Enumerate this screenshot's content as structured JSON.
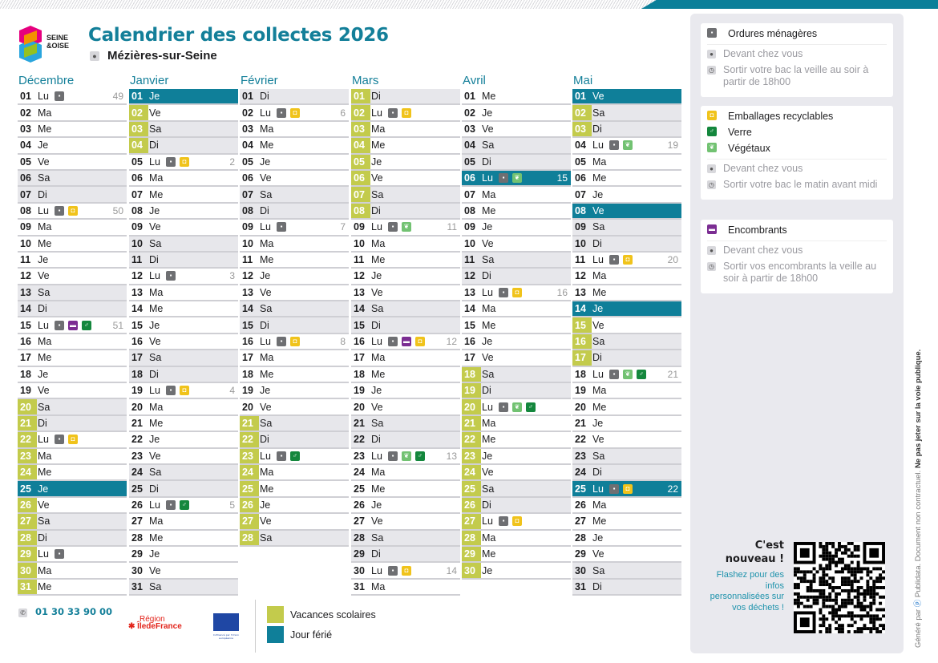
{
  "header": {
    "title": "Calendrier des collectes 2026",
    "town": "Mézières-sur-Seine",
    "logo_text": "SEINE & OISE"
  },
  "colors": {
    "teal": "#0f7f99",
    "vacances": "#c3cb4c",
    "weekend": "#e7e7eb"
  },
  "months": [
    {
      "name": "Décembre",
      "days": [
        {
          "n": "01",
          "j": "Lu",
          "i": [
            "om"
          ],
          "w": "49"
        },
        {
          "n": "02",
          "j": "Ma"
        },
        {
          "n": "03",
          "j": "Me"
        },
        {
          "n": "04",
          "j": "Je"
        },
        {
          "n": "05",
          "j": "Ve"
        },
        {
          "n": "06",
          "j": "Sa"
        },
        {
          "n": "07",
          "j": "Di"
        },
        {
          "n": "08",
          "j": "Lu",
          "i": [
            "om",
            "emb"
          ],
          "w": "50"
        },
        {
          "n": "09",
          "j": "Ma"
        },
        {
          "n": "10",
          "j": "Me"
        },
        {
          "n": "11",
          "j": "Je"
        },
        {
          "n": "12",
          "j": "Ve"
        },
        {
          "n": "13",
          "j": "Sa"
        },
        {
          "n": "14",
          "j": "Di"
        },
        {
          "n": "15",
          "j": "Lu",
          "i": [
            "om",
            "enc",
            "verre"
          ],
          "w": "51"
        },
        {
          "n": "16",
          "j": "Ma"
        },
        {
          "n": "17",
          "j": "Me"
        },
        {
          "n": "18",
          "j": "Je"
        },
        {
          "n": "19",
          "j": "Ve"
        },
        {
          "n": "20",
          "j": "Sa",
          "t": "vac"
        },
        {
          "n": "21",
          "j": "Di",
          "t": "vac"
        },
        {
          "n": "22",
          "j": "Lu",
          "i": [
            "om",
            "emb"
          ],
          "t": "vac"
        },
        {
          "n": "23",
          "j": "Ma",
          "t": "vac"
        },
        {
          "n": "24",
          "j": "Me",
          "t": "vac"
        },
        {
          "n": "25",
          "j": "Je",
          "t": "hol"
        },
        {
          "n": "26",
          "j": "Ve",
          "t": "vac"
        },
        {
          "n": "27",
          "j": "Sa",
          "t": "vac"
        },
        {
          "n": "28",
          "j": "Di",
          "t": "vac"
        },
        {
          "n": "29",
          "j": "Lu",
          "i": [
            "om"
          ],
          "t": "vac"
        },
        {
          "n": "30",
          "j": "Ma",
          "t": "vac"
        },
        {
          "n": "31",
          "j": "Me",
          "t": "vac"
        }
      ]
    },
    {
      "name": "Janvier",
      "days": [
        {
          "n": "01",
          "j": "Je",
          "t": "hol"
        },
        {
          "n": "02",
          "j": "Ve",
          "t": "vac"
        },
        {
          "n": "03",
          "j": "Sa",
          "t": "vac"
        },
        {
          "n": "04",
          "j": "Di",
          "t": "vac"
        },
        {
          "n": "05",
          "j": "Lu",
          "i": [
            "om",
            "emb"
          ],
          "w": "2"
        },
        {
          "n": "06",
          "j": "Ma"
        },
        {
          "n": "07",
          "j": "Me"
        },
        {
          "n": "08",
          "j": "Je"
        },
        {
          "n": "09",
          "j": "Ve"
        },
        {
          "n": "10",
          "j": "Sa"
        },
        {
          "n": "11",
          "j": "Di"
        },
        {
          "n": "12",
          "j": "Lu",
          "i": [
            "om"
          ],
          "w": "3"
        },
        {
          "n": "13",
          "j": "Ma"
        },
        {
          "n": "14",
          "j": "Me"
        },
        {
          "n": "15",
          "j": "Je"
        },
        {
          "n": "16",
          "j": "Ve"
        },
        {
          "n": "17",
          "j": "Sa"
        },
        {
          "n": "18",
          "j": "Di"
        },
        {
          "n": "19",
          "j": "Lu",
          "i": [
            "om",
            "emb"
          ],
          "w": "4"
        },
        {
          "n": "20",
          "j": "Ma"
        },
        {
          "n": "21",
          "j": "Me"
        },
        {
          "n": "22",
          "j": "Je"
        },
        {
          "n": "23",
          "j": "Ve"
        },
        {
          "n": "24",
          "j": "Sa"
        },
        {
          "n": "25",
          "j": "Di"
        },
        {
          "n": "26",
          "j": "Lu",
          "i": [
            "om",
            "verre"
          ],
          "w": "5"
        },
        {
          "n": "27",
          "j": "Ma"
        },
        {
          "n": "28",
          "j": "Me"
        },
        {
          "n": "29",
          "j": "Je"
        },
        {
          "n": "30",
          "j": "Ve"
        },
        {
          "n": "31",
          "j": "Sa"
        }
      ]
    },
    {
      "name": "Février",
      "days": [
        {
          "n": "01",
          "j": "Di"
        },
        {
          "n": "02",
          "j": "Lu",
          "i": [
            "om",
            "emb"
          ],
          "w": "6"
        },
        {
          "n": "03",
          "j": "Ma"
        },
        {
          "n": "04",
          "j": "Me"
        },
        {
          "n": "05",
          "j": "Je"
        },
        {
          "n": "06",
          "j": "Ve"
        },
        {
          "n": "07",
          "j": "Sa"
        },
        {
          "n": "08",
          "j": "Di"
        },
        {
          "n": "09",
          "j": "Lu",
          "i": [
            "om"
          ],
          "w": "7"
        },
        {
          "n": "10",
          "j": "Ma"
        },
        {
          "n": "11",
          "j": "Me"
        },
        {
          "n": "12",
          "j": "Je"
        },
        {
          "n": "13",
          "j": "Ve"
        },
        {
          "n": "14",
          "j": "Sa"
        },
        {
          "n": "15",
          "j": "Di"
        },
        {
          "n": "16",
          "j": "Lu",
          "i": [
            "om",
            "emb"
          ],
          "w": "8"
        },
        {
          "n": "17",
          "j": "Ma"
        },
        {
          "n": "18",
          "j": "Me"
        },
        {
          "n": "19",
          "j": "Je"
        },
        {
          "n": "20",
          "j": "Ve"
        },
        {
          "n": "21",
          "j": "Sa",
          "t": "vac"
        },
        {
          "n": "22",
          "j": "Di",
          "t": "vac"
        },
        {
          "n": "23",
          "j": "Lu",
          "i": [
            "om",
            "verre"
          ],
          "t": "vac"
        },
        {
          "n": "24",
          "j": "Ma",
          "t": "vac"
        },
        {
          "n": "25",
          "j": "Me",
          "t": "vac"
        },
        {
          "n": "26",
          "j": "Je",
          "t": "vac"
        },
        {
          "n": "27",
          "j": "Ve",
          "t": "vac"
        },
        {
          "n": "28",
          "j": "Sa",
          "t": "vac"
        }
      ]
    },
    {
      "name": "Mars",
      "days": [
        {
          "n": "01",
          "j": "Di",
          "t": "vac"
        },
        {
          "n": "02",
          "j": "Lu",
          "i": [
            "om",
            "emb"
          ],
          "t": "vac"
        },
        {
          "n": "03",
          "j": "Ma",
          "t": "vac"
        },
        {
          "n": "04",
          "j": "Me",
          "t": "vac"
        },
        {
          "n": "05",
          "j": "Je",
          "t": "vac"
        },
        {
          "n": "06",
          "j": "Ve",
          "t": "vac"
        },
        {
          "n": "07",
          "j": "Sa",
          "t": "vac"
        },
        {
          "n": "08",
          "j": "Di",
          "t": "vac"
        },
        {
          "n": "09",
          "j": "Lu",
          "i": [
            "om",
            "veg"
          ],
          "w": "11"
        },
        {
          "n": "10",
          "j": "Ma"
        },
        {
          "n": "11",
          "j": "Me"
        },
        {
          "n": "12",
          "j": "Je"
        },
        {
          "n": "13",
          "j": "Ve"
        },
        {
          "n": "14",
          "j": "Sa"
        },
        {
          "n": "15",
          "j": "Di"
        },
        {
          "n": "16",
          "j": "Lu",
          "i": [
            "om",
            "enc",
            "emb"
          ],
          "w": "12"
        },
        {
          "n": "17",
          "j": "Ma"
        },
        {
          "n": "18",
          "j": "Me"
        },
        {
          "n": "19",
          "j": "Je"
        },
        {
          "n": "20",
          "j": "Ve"
        },
        {
          "n": "21",
          "j": "Sa"
        },
        {
          "n": "22",
          "j": "Di"
        },
        {
          "n": "23",
          "j": "Lu",
          "i": [
            "om",
            "veg",
            "verre"
          ],
          "w": "13"
        },
        {
          "n": "24",
          "j": "Ma"
        },
        {
          "n": "25",
          "j": "Me"
        },
        {
          "n": "26",
          "j": "Je"
        },
        {
          "n": "27",
          "j": "Ve"
        },
        {
          "n": "28",
          "j": "Sa"
        },
        {
          "n": "29",
          "j": "Di"
        },
        {
          "n": "30",
          "j": "Lu",
          "i": [
            "om",
            "emb"
          ],
          "w": "14"
        },
        {
          "n": "31",
          "j": "Ma"
        }
      ]
    },
    {
      "name": "Avril",
      "days": [
        {
          "n": "01",
          "j": "Me"
        },
        {
          "n": "02",
          "j": "Je"
        },
        {
          "n": "03",
          "j": "Ve"
        },
        {
          "n": "04",
          "j": "Sa"
        },
        {
          "n": "05",
          "j": "Di"
        },
        {
          "n": "06",
          "j": "Lu",
          "i": [
            "om",
            "veg"
          ],
          "w": "15",
          "t": "hol"
        },
        {
          "n": "07",
          "j": "Ma"
        },
        {
          "n": "08",
          "j": "Me"
        },
        {
          "n": "09",
          "j": "Je"
        },
        {
          "n": "10",
          "j": "Ve"
        },
        {
          "n": "11",
          "j": "Sa"
        },
        {
          "n": "12",
          "j": "Di"
        },
        {
          "n": "13",
          "j": "Lu",
          "i": [
            "om",
            "emb"
          ],
          "w": "16"
        },
        {
          "n": "14",
          "j": "Ma"
        },
        {
          "n": "15",
          "j": "Me"
        },
        {
          "n": "16",
          "j": "Je"
        },
        {
          "n": "17",
          "j": "Ve"
        },
        {
          "n": "18",
          "j": "Sa",
          "t": "vac"
        },
        {
          "n": "19",
          "j": "Di",
          "t": "vac"
        },
        {
          "n": "20",
          "j": "Lu",
          "i": [
            "om",
            "veg",
            "verre"
          ],
          "t": "vac"
        },
        {
          "n": "21",
          "j": "Ma",
          "t": "vac"
        },
        {
          "n": "22",
          "j": "Me",
          "t": "vac"
        },
        {
          "n": "23",
          "j": "Je",
          "t": "vac"
        },
        {
          "n": "24",
          "j": "Ve",
          "t": "vac"
        },
        {
          "n": "25",
          "j": "Sa",
          "t": "vac"
        },
        {
          "n": "26",
          "j": "Di",
          "t": "vac"
        },
        {
          "n": "27",
          "j": "Lu",
          "i": [
            "om",
            "emb"
          ],
          "t": "vac"
        },
        {
          "n": "28",
          "j": "Ma",
          "t": "vac"
        },
        {
          "n": "29",
          "j": "Me",
          "t": "vac"
        },
        {
          "n": "30",
          "j": "Je",
          "t": "vac"
        }
      ]
    },
    {
      "name": "Mai",
      "days": [
        {
          "n": "01",
          "j": "Ve",
          "t": "hol"
        },
        {
          "n": "02",
          "j": "Sa",
          "t": "vac"
        },
        {
          "n": "03",
          "j": "Di",
          "t": "vac"
        },
        {
          "n": "04",
          "j": "Lu",
          "i": [
            "om",
            "veg"
          ],
          "w": "19"
        },
        {
          "n": "05",
          "j": "Ma"
        },
        {
          "n": "06",
          "j": "Me"
        },
        {
          "n": "07",
          "j": "Je"
        },
        {
          "n": "08",
          "j": "Ve",
          "t": "hol"
        },
        {
          "n": "09",
          "j": "Sa"
        },
        {
          "n": "10",
          "j": "Di"
        },
        {
          "n": "11",
          "j": "Lu",
          "i": [
            "om",
            "emb"
          ],
          "w": "20"
        },
        {
          "n": "12",
          "j": "Ma"
        },
        {
          "n": "13",
          "j": "Me"
        },
        {
          "n": "14",
          "j": "Je",
          "t": "hol"
        },
        {
          "n": "15",
          "j": "Ve",
          "t": "vac"
        },
        {
          "n": "16",
          "j": "Sa",
          "t": "vac"
        },
        {
          "n": "17",
          "j": "Di",
          "t": "vac"
        },
        {
          "n": "18",
          "j": "Lu",
          "i": [
            "om",
            "veg",
            "verre"
          ],
          "w": "21"
        },
        {
          "n": "19",
          "j": "Ma"
        },
        {
          "n": "20",
          "j": "Me"
        },
        {
          "n": "21",
          "j": "Je"
        },
        {
          "n": "22",
          "j": "Ve"
        },
        {
          "n": "23",
          "j": "Sa"
        },
        {
          "n": "24",
          "j": "Di"
        },
        {
          "n": "25",
          "j": "Lu",
          "i": [
            "om",
            "emb"
          ],
          "w": "22",
          "t": "hol"
        },
        {
          "n": "26",
          "j": "Ma"
        },
        {
          "n": "27",
          "j": "Me"
        },
        {
          "n": "28",
          "j": "Je"
        },
        {
          "n": "29",
          "j": "Ve"
        },
        {
          "n": "30",
          "j": "Sa"
        },
        {
          "n": "31",
          "j": "Di"
        }
      ]
    }
  ],
  "icons": {
    "om": "trash-icon",
    "emb": "packaging-icon",
    "verre": "glass-bottle-icon",
    "veg": "leaf-icon",
    "enc": "bulky-item-icon"
  },
  "legend": {
    "om": {
      "title": "Ordures ménagères",
      "where": "Devant chez vous",
      "when": "Sortir votre bac la veille au soir à partir de 18h00"
    },
    "tri": {
      "emb": "Emballages recyclables",
      "verre": "Verre",
      "veg": "Végétaux",
      "where": "Devant chez vous",
      "when": "Sortir votre bac le matin avant midi"
    },
    "enc": {
      "title": "Encombrants",
      "where": "Devant chez vous",
      "when": "Sortir vos encombrants la veille au soir à partir de 18h00"
    }
  },
  "promo": {
    "title1": "C'est",
    "title2": "nouveau !",
    "text": "Flashez pour des infos personnalisées sur vos déchets !"
  },
  "footer": {
    "phone": "01 30 33 90 00",
    "region1": "Région",
    "region2": "ÎledeFrance",
    "eu_caption": "Cofinancé par l'Union européenne",
    "vacances": "Vacances scolaires",
    "ferie": "Jour férié"
  },
  "side": {
    "generated": "Généré par",
    "brand": "Publidata",
    "note1": ". Document non contractuel.",
    "note2": " Ne pas jeter sur la voie publique."
  }
}
